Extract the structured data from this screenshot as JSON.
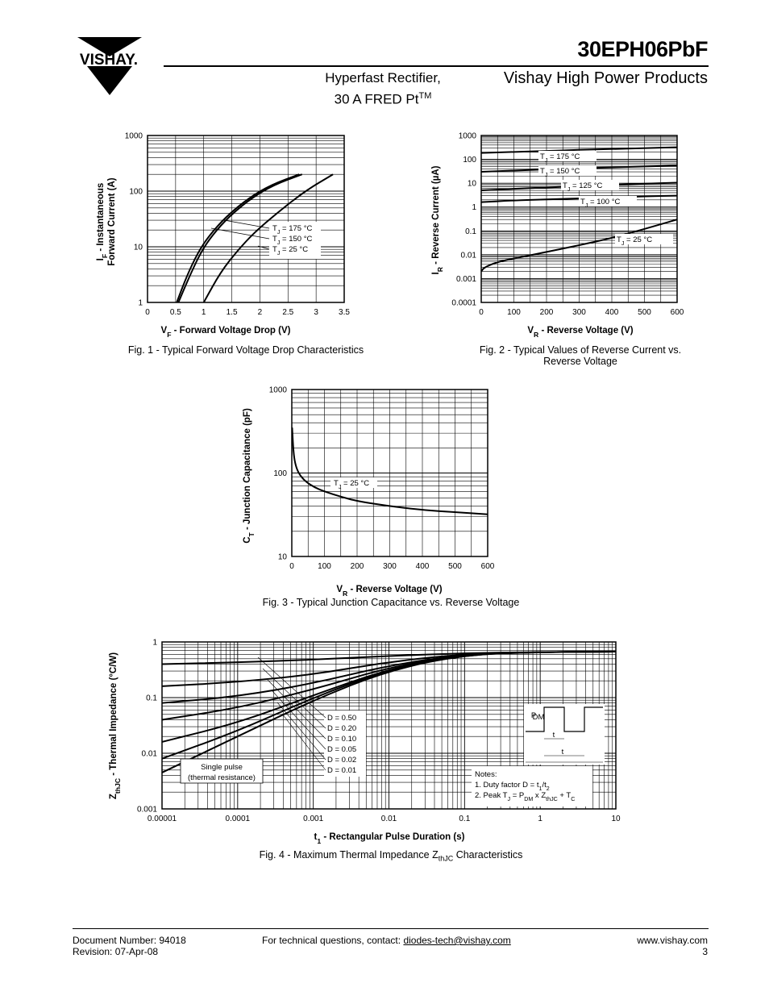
{
  "header": {
    "brand": "VISHAY.",
    "part_number": "30EPH06PbF",
    "subtitle_line1": "Hyperfast Rectifier,",
    "subtitle_line2": "30 A FRED Pt",
    "subtitle_sup": "TM",
    "division": "Vishay High Power Products"
  },
  "figures": [
    {
      "caption": "Fig. 1 - Typical Forward Voltage Drop Characteristics",
      "ylabel_line1": "I",
      "ylabel_sub": "F",
      "ylabel_rest": " - Instantaneous",
      "ylabel_line2": "Forward Current (A)",
      "xlabel_main": "V",
      "xlabel_sub": "F",
      "xlabel_rest": " - Forward Voltage Drop (V)",
      "curve_labels": [
        "T",
        "T",
        "T"
      ],
      "curve_label_rest": [
        " = 175 °C",
        " = 150 °C",
        " = 25 °C"
      ],
      "curve_label_sub": "J"
    },
    {
      "caption_line1": "Fig. 2 - Typical Values of Reverse Current vs.",
      "caption_line2": "Reverse Voltage",
      "ylabel_main": "I",
      "ylabel_sub": "R",
      "ylabel_rest": " - Reverse Current (µA)",
      "xlabel_main": "V",
      "xlabel_sub": "R",
      "xlabel_rest": " - Reverse Voltage (V)",
      "curve_label_rest": [
        " = 175 °C",
        " = 150 °C",
        " = 125 °C",
        " = 100 °C",
        " = 25 °C"
      ]
    },
    {
      "caption": "Fig. 3 - Typical Junction Capacitance vs. Reverse Voltage",
      "ylabel_main": "C",
      "ylabel_sub": "T",
      "ylabel_rest": " - Junction Capacitance (pF)",
      "xlabel_main": "V",
      "xlabel_sub": "R",
      "xlabel_rest": " - Reverse Voltage (V)",
      "curve_label_rest": " = 25 °C"
    },
    {
      "caption_main": "Fig. 4 - Maximum Thermal Impedance Z",
      "caption_sub": "thJC",
      "caption_rest": " Characteristics",
      "ylabel_main": "Z",
      "ylabel_sub": "thJC",
      "ylabel_rest": " - Thermal Impedance  (°C/W)",
      "xlabel_main": "t",
      "xlabel_sub": "1",
      "xlabel_rest": " - Rectangular Pulse Duration (s)",
      "duty_labels": [
        "D = 0.50",
        "D = 0.20",
        "D = 0.10",
        "D = 0.05",
        "D = 0.02",
        "D = 0.01"
      ],
      "single_pulse_line1": "Single pulse",
      "single_pulse_line2": "(thermal resistance)",
      "notes_title": "Notes:",
      "note1": "1. Duty factor D = t",
      "note1_rest": "/t",
      "note2": "2. Peak T",
      "note2_mid": " = P",
      "note2_mid2": " x Z",
      "note2_end": " + T",
      "pulse_p": "P",
      "pulse_dm": "DM",
      "pulse_t1": "t",
      "pulse_t2": "t"
    }
  ],
  "chart_data": [
    {
      "type": "line",
      "xlim": [
        0,
        3.5
      ],
      "ylim": [
        1,
        1000
      ],
      "yscale": "log",
      "x_ticks": [
        "0",
        "0.5",
        "1",
        "1.5",
        "2",
        "2.5",
        "3",
        "3.5"
      ],
      "y_ticks": [
        "1",
        "10",
        "100",
        "1000"
      ],
      "grid": true,
      "series": [
        {
          "name": "T_J = 175 °C",
          "x": [
            0.52,
            0.7,
            0.9,
            1.1,
            1.4,
            1.8,
            2.2,
            2.7
          ],
          "y": [
            1,
            3,
            8,
            16,
            35,
            75,
            130,
            200
          ]
        },
        {
          "name": "T_J = 150 °C",
          "x": [
            0.55,
            0.75,
            0.95,
            1.15,
            1.45,
            1.85,
            2.25,
            2.75
          ],
          "y": [
            1,
            3,
            8,
            16,
            35,
            75,
            130,
            200
          ]
        },
        {
          "name": "T_J = 25 °C",
          "x": [
            1.0,
            1.3,
            1.6,
            1.9,
            2.3,
            2.8,
            3.3
          ],
          "y": [
            1,
            3.5,
            8.5,
            18,
            40,
            100,
            200
          ]
        }
      ]
    },
    {
      "type": "line",
      "xlim": [
        0,
        600
      ],
      "ylim": [
        0.0001,
        1000
      ],
      "yscale": "log",
      "x_ticks": [
        "0",
        "100",
        "200",
        "300",
        "400",
        "500",
        "600"
      ],
      "y_ticks": [
        "0.0001",
        "0.001",
        "0.01",
        "0.1",
        "1",
        "10",
        "100",
        "1000"
      ],
      "grid": true,
      "series": [
        {
          "name": "T_J = 175 °C",
          "x": [
            0,
            100,
            200,
            300,
            400,
            500,
            600
          ],
          "y": [
            185,
            205,
            225,
            250,
            270,
            295,
            320
          ]
        },
        {
          "name": "T_J = 150 °C",
          "x": [
            0,
            100,
            200,
            300,
            400,
            500,
            600
          ],
          "y": [
            30,
            34,
            38,
            42,
            46,
            50,
            55
          ]
        },
        {
          "name": "T_J = 125 °C",
          "x": [
            0,
            100,
            200,
            300,
            400,
            500,
            600
          ],
          "y": [
            5,
            5.8,
            6.6,
            7.5,
            8.5,
            9.5,
            10.5
          ]
        },
        {
          "name": "T_J = 100 °C",
          "x": [
            0,
            100,
            200,
            300,
            400,
            500,
            600
          ],
          "y": [
            1.6,
            1.9,
            2.1,
            2.3,
            2.5,
            2.8,
            3.0
          ]
        },
        {
          "name": "T_J = 25 °C",
          "x": [
            0,
            10,
            50,
            100,
            200,
            300,
            400,
            500,
            600
          ],
          "y": [
            0.002,
            0.003,
            0.005,
            0.007,
            0.013,
            0.025,
            0.05,
            0.12,
            0.3
          ]
        }
      ]
    },
    {
      "type": "line",
      "xlim": [
        0,
        600
      ],
      "ylim": [
        10,
        1000
      ],
      "yscale": "log",
      "x_ticks": [
        "0",
        "100",
        "200",
        "300",
        "400",
        "500",
        "600"
      ],
      "y_ticks": [
        "10",
        "100",
        "1000"
      ],
      "grid": true,
      "series": [
        {
          "name": "T_J = 25 °C",
          "x": [
            1,
            5,
            10,
            20,
            40,
            70,
            100,
            150,
            200,
            300,
            400,
            500,
            600
          ],
          "y": [
            350,
            180,
            130,
            100,
            80,
            67,
            60,
            52,
            46,
            40,
            36,
            34,
            32
          ]
        }
      ]
    },
    {
      "type": "line",
      "xlim": [
        1e-05,
        10
      ],
      "ylim": [
        0.001,
        1
      ],
      "xscale": "log",
      "yscale": "log",
      "x_ticks": [
        "0.00001",
        "0.0001",
        "0.001",
        "0.01",
        "0.1",
        "1",
        "10"
      ],
      "y_ticks": [
        "0.001",
        "0.01",
        "0.1",
        "1"
      ],
      "grid": true,
      "series": [
        {
          "name": "D = 0.50",
          "x": [
            1e-05,
            0.0001,
            0.001,
            0.01,
            0.1,
            1,
            10
          ],
          "y": [
            0.4,
            0.43,
            0.48,
            0.56,
            0.63,
            0.66,
            0.67
          ]
        },
        {
          "name": "D = 0.20",
          "x": [
            1e-05,
            0.0001,
            0.001,
            0.01,
            0.1,
            1,
            10
          ],
          "y": [
            0.16,
            0.19,
            0.26,
            0.44,
            0.61,
            0.66,
            0.67
          ]
        },
        {
          "name": "D = 0.10",
          "x": [
            1e-05,
            0.0001,
            0.001,
            0.01,
            0.1,
            1,
            10
          ],
          "y": [
            0.08,
            0.105,
            0.18,
            0.38,
            0.6,
            0.66,
            0.67
          ]
        },
        {
          "name": "D = 0.05",
          "x": [
            1e-05,
            0.0001,
            0.001,
            0.01,
            0.1,
            1,
            10
          ],
          "y": [
            0.04,
            0.065,
            0.14,
            0.35,
            0.6,
            0.66,
            0.67
          ]
        },
        {
          "name": "D = 0.02",
          "x": [
            1e-05,
            0.0001,
            0.001,
            0.01,
            0.1,
            1,
            10
          ],
          "y": [
            0.016,
            0.035,
            0.11,
            0.33,
            0.6,
            0.66,
            0.67
          ]
        },
        {
          "name": "D = 0.01",
          "x": [
            1e-05,
            0.0001,
            0.001,
            0.01,
            0.1,
            1,
            10
          ],
          "y": [
            0.008,
            0.025,
            0.1,
            0.32,
            0.59,
            0.66,
            0.67
          ]
        },
        {
          "name": "Single pulse (thermal resistance)",
          "x": [
            1e-05,
            0.0001,
            0.001,
            0.01,
            0.1,
            1,
            10
          ],
          "y": [
            0.0045,
            0.02,
            0.09,
            0.31,
            0.59,
            0.66,
            0.67
          ]
        }
      ]
    }
  ],
  "footer": {
    "doc_number": "Document Number: 94018",
    "revision": "Revision: 07-Apr-08",
    "contact_prefix": "For technical questions, contact: ",
    "contact_email": "diodes-tech@vishay.com",
    "website": "www.vishay.com",
    "page": "3"
  }
}
